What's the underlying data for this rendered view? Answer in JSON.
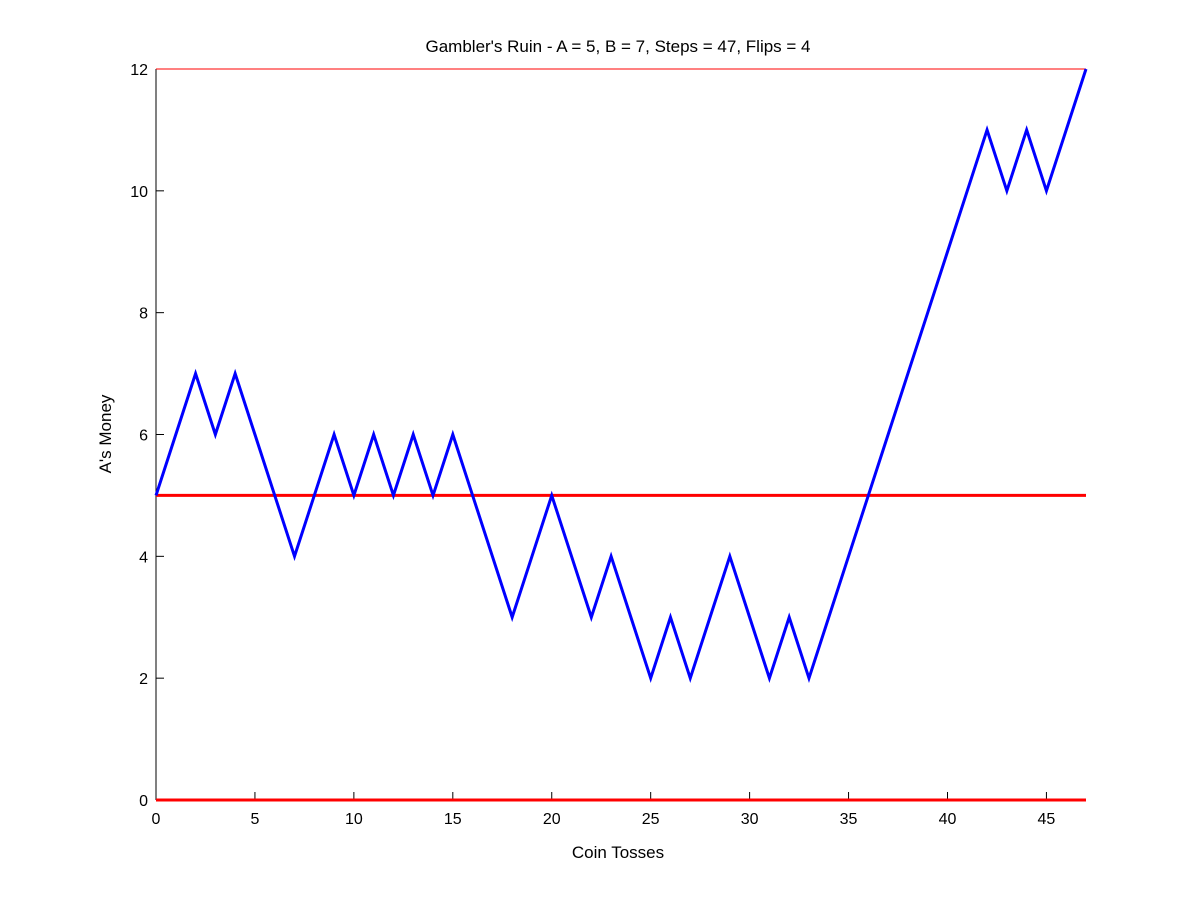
{
  "chart_data": {
    "type": "line",
    "title": "Gambler's Ruin - A = 5, B = 7, Steps = 47, Flips = 4",
    "xlabel": "Coin Tosses",
    "ylabel": "A's Money",
    "xlim": [
      0,
      47
    ],
    "ylim": [
      0,
      12
    ],
    "xticks": [
      0,
      5,
      10,
      15,
      20,
      25,
      30,
      35,
      40,
      45
    ],
    "yticks": [
      0,
      2,
      4,
      6,
      8,
      10,
      12
    ],
    "grid": false,
    "series": [
      {
        "color": "#0000ff",
        "x": [
          0,
          1,
          2,
          3,
          4,
          5,
          6,
          7,
          8,
          9,
          10,
          11,
          12,
          13,
          14,
          15,
          16,
          17,
          18,
          19,
          20,
          21,
          22,
          23,
          24,
          25,
          26,
          27,
          28,
          29,
          30,
          31,
          32,
          33,
          34,
          35,
          36,
          37,
          38,
          39,
          40,
          41,
          42,
          43,
          44,
          45,
          46,
          47
        ],
        "y": [
          5,
          6,
          7,
          6,
          7,
          6,
          5,
          4,
          5,
          6,
          5,
          6,
          5,
          6,
          5,
          6,
          5,
          4,
          3,
          4,
          5,
          4,
          3,
          4,
          3,
          2,
          3,
          2,
          3,
          4,
          3,
          2,
          3,
          2,
          3,
          4,
          5,
          6,
          7,
          8,
          9,
          10,
          11,
          10,
          11,
          10,
          11,
          12
        ]
      }
    ],
    "reference_lines": [
      {
        "y": 0,
        "color": "#ff0000"
      },
      {
        "y": 5,
        "color": "#ff0000"
      },
      {
        "y": 12,
        "color": "#ff0000"
      }
    ]
  }
}
